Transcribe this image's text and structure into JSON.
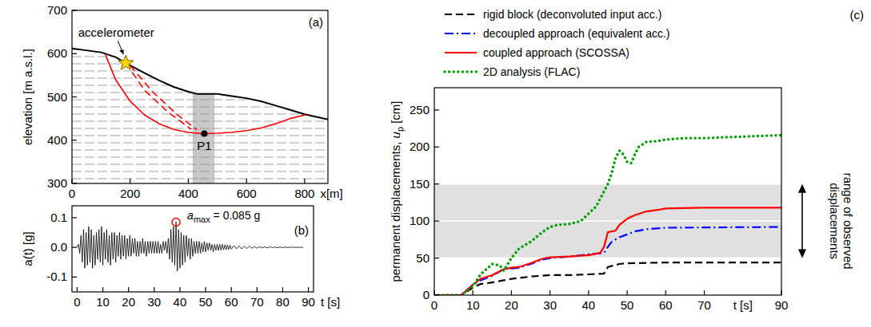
{
  "chart_data": [
    {
      "type": "line",
      "panel": "(a)",
      "y_label": "elevation [m a.s.l.]",
      "x_label": "x[m]",
      "xlim": [
        0,
        880
      ],
      "ylim": [
        300,
        700
      ],
      "xticks": [
        0,
        200,
        400,
        600,
        800
      ],
      "yticks": [
        300,
        400,
        500,
        600,
        700
      ],
      "series": [
        {
          "color": "#000000",
          "line_style": "solid",
          "x": [
            0,
            100,
            150,
            185,
            250,
            300,
            350,
            400,
            430,
            500,
            550,
            600,
            650,
            700,
            750,
            800,
            880
          ],
          "values": [
            612,
            603,
            592,
            578,
            555,
            538,
            523,
            512,
            507,
            507,
            502,
            497,
            490,
            480,
            470,
            460,
            448
          ]
        },
        {
          "color": "#ff0000",
          "line_style": "solid",
          "x": [
            115,
            150,
            200,
            250,
            300,
            350,
            400,
            450,
            500,
            550,
            600,
            650,
            700,
            750,
            805
          ],
          "values": [
            598,
            540,
            490,
            458,
            438,
            425,
            418,
            415,
            416,
            418,
            422,
            428,
            438,
            450,
            459
          ]
        },
        {
          "color": "#ff0000",
          "line_style": "dashed",
          "x": [
            185,
            250,
            330,
            410
          ],
          "values": [
            578,
            515,
            465,
            425
          ]
        },
        {
          "color": "#ff0000",
          "line_style": "dashed",
          "x": [
            200,
            280,
            360,
            430
          ],
          "values": [
            572,
            510,
            460,
            424
          ]
        }
      ],
      "shaded_column": {
        "x": [
          415,
          490
        ],
        "color": "#c8c8c8"
      },
      "points": [
        {
          "label": "accelerometer",
          "x": 185,
          "y": 578,
          "marker": "star",
          "color": "#ffd700"
        },
        {
          "label": "P1",
          "x": 455,
          "y": 415,
          "marker": "circle",
          "color": "#000000"
        }
      ]
    },
    {
      "type": "line",
      "panel": "(b)",
      "y_label": "a(t) [g]",
      "x_label": "t [s]",
      "xlim": [
        -2,
        92
      ],
      "ylim": [
        -0.15,
        0.14
      ],
      "xticks": [
        0,
        10,
        20,
        30,
        40,
        50,
        60,
        70,
        80,
        90
      ],
      "yticks": [
        -0.1,
        {
          "value": 0,
          "label": "0.0"
        },
        0.1
      ],
      "series": [
        {
          "color": "#000000",
          "line_style": "solid",
          "x": [
            0,
            0.5,
            1,
            1.5,
            2,
            2.5,
            3,
            3.5,
            4,
            4.5,
            5,
            5.5,
            6,
            6.5,
            7,
            7.5,
            8,
            8.5,
            9,
            9.5,
            10,
            10.5,
            11,
            11.5,
            12,
            12.5,
            13,
            13.5,
            14,
            14.5,
            15,
            15.5,
            16,
            16.5,
            17,
            17.5,
            18,
            18.5,
            19,
            19.5,
            20,
            20.5,
            21,
            21.5,
            22,
            22.5,
            23,
            23.5,
            24,
            24.5,
            25,
            25.5,
            26,
            26.5,
            27,
            27.5,
            28,
            28.5,
            29,
            29.5,
            30,
            30.5,
            31,
            31.5,
            32,
            32.5,
            33,
            33.5,
            34,
            34.5,
            35,
            35.5,
            36,
            36.5,
            37,
            37.5,
            38,
            38.5,
            39,
            39.5,
            40,
            40.5,
            41,
            41.5,
            42,
            42.5,
            43,
            43.5,
            44,
            44.5,
            45,
            45.5,
            46,
            46.5,
            47,
            47.5,
            48,
            48.5,
            49,
            49.5,
            50,
            50.5,
            51,
            51.5,
            52,
            52.5,
            53,
            53.5,
            54,
            54.5,
            55,
            55.5,
            56,
            56.5,
            57,
            57.5,
            58,
            58.5,
            59,
            59.5,
            60,
            61,
            62,
            63,
            64,
            65,
            66,
            67,
            68,
            69,
            70,
            71,
            72,
            73,
            74,
            75,
            76,
            77,
            78,
            79,
            80,
            81,
            82,
            83,
            84,
            85,
            86,
            87,
            88
          ],
          "values": [
            0,
            0.01,
            -0.02,
            0.04,
            -0.05,
            0.06,
            -0.07,
            0.05,
            -0.06,
            0.07,
            -0.05,
            0.06,
            -0.07,
            0.04,
            -0.06,
            0.05,
            -0.04,
            0.06,
            -0.05,
            0.07,
            -0.06,
            0.05,
            -0.04,
            0.06,
            -0.05,
            0.04,
            -0.06,
            0.05,
            -0.04,
            0.05,
            -0.05,
            0.04,
            -0.03,
            0.05,
            -0.04,
            0.04,
            -0.03,
            0.04,
            -0.04,
            0.03,
            -0.03,
            0.04,
            -0.03,
            0.03,
            -0.02,
            0.03,
            -0.03,
            0.02,
            -0.03,
            0.02,
            -0.02,
            0.03,
            -0.02,
            0.02,
            -0.03,
            0.02,
            -0.02,
            0.02,
            -0.02,
            0.02,
            -0.02,
            0.02,
            -0.02,
            0.02,
            -0.02,
            0.01,
            -0.02,
            0.02,
            -0.01,
            0.02,
            -0.02,
            0.03,
            -0.04,
            0.06,
            -0.05,
            0.07,
            -0.06,
            0.085,
            -0.08,
            0.06,
            -0.07,
            0.05,
            -0.06,
            0.04,
            -0.05,
            0.04,
            -0.03,
            0.03,
            -0.04,
            0.03,
            -0.03,
            0.02,
            -0.02,
            0.02,
            -0.02,
            0.02,
            -0.02,
            0.015,
            -0.015,
            0.02,
            -0.015,
            0.015,
            -0.01,
            0.015,
            -0.01,
            0.01,
            -0.015,
            0.01,
            -0.01,
            0.01,
            -0.01,
            0.01,
            -0.01,
            0.01,
            -0.008,
            0.008,
            -0.008,
            0.008,
            -0.007,
            0.007,
            -0.006,
            0.006,
            -0.005,
            0.005,
            -0.005,
            0.004,
            -0.004,
            0.004,
            -0.003,
            0.003,
            -0.003,
            0.002,
            -0.002,
            0.002,
            -0.002,
            0.002,
            -0.001,
            0.001,
            -0.001,
            0.001,
            -0.001,
            0.001,
            -0.001,
            0.001,
            0,
            0,
            0,
            0,
            0
          ]
        }
      ],
      "annotation": {
        "x": 38.5,
        "y": 0.085,
        "marker": "circle",
        "color": "#ff0000",
        "symbol": "a",
        "subscript": "max",
        "after": " = 0.085 g"
      }
    },
    {
      "type": "line",
      "panel": "(c)",
      "y_label": {
        "before": "permanent displacements, ",
        "symbol": "u",
        "subscript": "p",
        "after": " [cm]"
      },
      "x_label": "t [s]",
      "xlim": [
        0,
        90
      ],
      "ylim": [
        0,
        280
      ],
      "xticks": [
        0,
        10,
        20,
        30,
        40,
        50,
        60,
        70,
        90
      ],
      "yticks": [
        0,
        50,
        100,
        150,
        200,
        250
      ],
      "grid": true,
      "legend": "top-left",
      "series": [
        {
          "name": "rigid block (deconvoluted input acc.)",
          "color": "#000000",
          "line_style": "dashed",
          "x": [
            0,
            7,
            10,
            12,
            15,
            18,
            20,
            25,
            30,
            35,
            40,
            44,
            45,
            48,
            50,
            60,
            90
          ],
          "values": [
            0,
            0,
            10,
            15,
            17,
            20,
            22,
            25,
            27,
            27,
            28,
            29,
            38,
            42,
            43,
            44,
            44
          ]
        },
        {
          "name": "decoupled approach (equivalent acc.)",
          "color": "#0000ff",
          "line_style": "dashdot",
          "x": [
            0,
            7,
            10,
            12,
            15,
            18,
            20,
            22,
            25,
            28,
            30,
            35,
            40,
            44,
            45,
            46,
            48,
            50,
            52,
            55,
            60,
            90
          ],
          "values": [
            0,
            0,
            14,
            20,
            26,
            35,
            36,
            37,
            42,
            48,
            50,
            52,
            55,
            57,
            65,
            72,
            78,
            82,
            86,
            89,
            91,
            92
          ]
        },
        {
          "name": "coupled approach (SCOSSA)",
          "color": "#ff0000",
          "line_style": "solid",
          "x": [
            0,
            7,
            10,
            12,
            15,
            18,
            20,
            22,
            25,
            28,
            30,
            35,
            40,
            43,
            44,
            45,
            47,
            48,
            50,
            52,
            55,
            58,
            60,
            70,
            90
          ],
          "values": [
            0,
            0,
            14,
            22,
            27,
            35,
            37,
            38,
            43,
            49,
            51,
            52,
            54,
            57,
            65,
            85,
            87,
            95,
            103,
            108,
            113,
            115,
            117,
            118,
            118
          ]
        },
        {
          "name": "2D analysis (FLAC)",
          "color": "#00a000",
          "line_style": "dotted",
          "x": [
            0,
            7,
            10,
            12,
            15,
            17,
            18,
            20,
            22,
            25,
            28,
            30,
            32,
            35,
            38,
            40,
            42,
            44,
            45,
            46,
            47,
            48,
            49,
            50,
            51,
            52,
            53,
            55,
            58,
            60,
            65,
            70,
            75,
            80,
            85,
            90
          ],
          "values": [
            0,
            0,
            12,
            28,
            42,
            40,
            33,
            50,
            63,
            72,
            85,
            92,
            95,
            96,
            100,
            110,
            120,
            140,
            150,
            165,
            185,
            195,
            190,
            180,
            178,
            190,
            200,
            207,
            208,
            210,
            212,
            212,
            213,
            214,
            215,
            216
          ]
        }
      ],
      "observed_range": {
        "values": [
          50,
          150
        ],
        "color": "#e0e0e0",
        "label": "range of observed displacements"
      }
    }
  ]
}
